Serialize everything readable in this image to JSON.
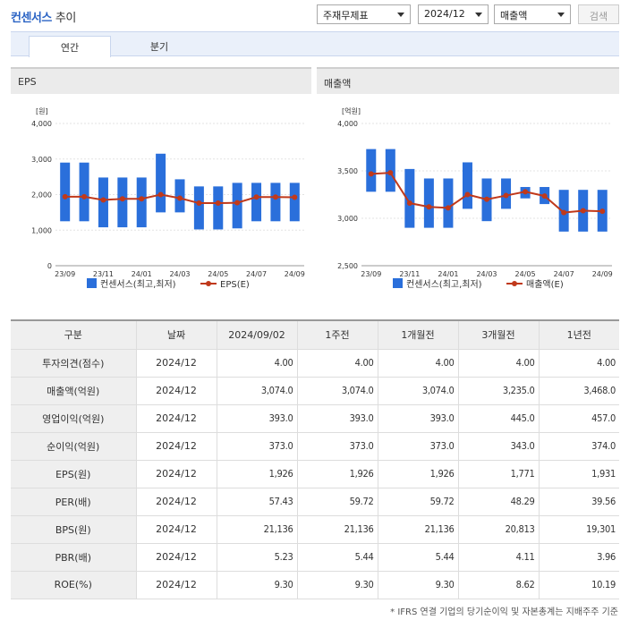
{
  "header": {
    "title_accent": "컨센서스",
    "title_rest": "추이",
    "select_type": "주재무제표",
    "select_period": "2024/12",
    "select_item": "매출액",
    "search_label": "검색"
  },
  "tabs": [
    {
      "label": "연간"
    },
    {
      "label": "분기"
    }
  ],
  "charts": {
    "eps": {
      "title": "EPS"
    },
    "revenue": {
      "title": "매출액"
    }
  },
  "chart_data": [
    {
      "type": "bar",
      "title": "EPS",
      "ylabel": "[원]",
      "ylim": [
        0,
        4000
      ],
      "yticks": [
        "4,000",
        "3,000",
        "2,000",
        "1,000",
        "0"
      ],
      "yticks_values": [
        4000,
        3000,
        2000,
        1000,
        0
      ],
      "x_tick_labels": [
        "23/09",
        "23/11",
        "24/01",
        "24/03",
        "24/05",
        "24/07",
        "24/09"
      ],
      "series": [
        {
          "name": "컨센서스(최고,최저)",
          "kind": "range-bar",
          "color": "#2a6fdb",
          "ranges": [
            [
              1250,
              2900
            ],
            [
              1250,
              2900
            ],
            [
              1080,
              2480
            ],
            [
              1080,
              2480
            ],
            [
              1080,
              2480
            ],
            [
              1500,
              3150
            ],
            [
              1500,
              2430
            ],
            [
              1020,
              2230
            ],
            [
              1020,
              2230
            ],
            [
              1050,
              2330
            ],
            [
              1250,
              2330
            ],
            [
              1250,
              2330
            ],
            [
              1250,
              2330
            ]
          ]
        },
        {
          "name": "EPS(E)",
          "kind": "line",
          "color": "#c0391b",
          "values": [
            1940,
            1940,
            1850,
            1880,
            1880,
            2000,
            1900,
            1760,
            1760,
            1770,
            1930,
            1930,
            1926
          ]
        }
      ]
    },
    {
      "type": "bar",
      "title": "매출액",
      "ylabel": "[억원]",
      "ylim": [
        2500,
        4000
      ],
      "yticks": [
        "4,000",
        "3,500",
        "3,000",
        "2,500"
      ],
      "yticks_values": [
        4000,
        3500,
        3000,
        2500
      ],
      "x_tick_labels": [
        "23/09",
        "23/11",
        "24/01",
        "24/03",
        "24/05",
        "24/07",
        "24/09"
      ],
      "series": [
        {
          "name": "컨센서스(최고,최저)",
          "kind": "range-bar",
          "color": "#2a6fdb",
          "ranges": [
            [
              3280,
              3730
            ],
            [
              3280,
              3730
            ],
            [
              2900,
              3520
            ],
            [
              2900,
              3420
            ],
            [
              2900,
              3420
            ],
            [
              3100,
              3590
            ],
            [
              2970,
              3420
            ],
            [
              3100,
              3420
            ],
            [
              3210,
              3330
            ],
            [
              3150,
              3330
            ],
            [
              2860,
              3300
            ],
            [
              2860,
              3300
            ],
            [
              2860,
              3300
            ]
          ]
        },
        {
          "name": "매출액(E)",
          "kind": "line",
          "color": "#c0391b",
          "values": [
            3468,
            3480,
            3160,
            3120,
            3110,
            3250,
            3200,
            3240,
            3280,
            3235,
            3060,
            3080,
            3074
          ]
        }
      ]
    }
  ],
  "table": {
    "headers": [
      "구분",
      "날짜",
      "2024/09/02",
      "1주전",
      "1개월전",
      "3개월전",
      "1년전"
    ],
    "rows": [
      [
        "투자의견(점수)",
        "2024/12",
        "4.00",
        "4.00",
        "4.00",
        "4.00",
        "4.00"
      ],
      [
        "매출액(억원)",
        "2024/12",
        "3,074.0",
        "3,074.0",
        "3,074.0",
        "3,235.0",
        "3,468.0"
      ],
      [
        "영업이익(억원)",
        "2024/12",
        "393.0",
        "393.0",
        "393.0",
        "445.0",
        "457.0"
      ],
      [
        "순이익(억원)",
        "2024/12",
        "373.0",
        "373.0",
        "373.0",
        "343.0",
        "374.0"
      ],
      [
        "EPS(원)",
        "2024/12",
        "1,926",
        "1,926",
        "1,926",
        "1,771",
        "1,931"
      ],
      [
        "PER(배)",
        "2024/12",
        "57.43",
        "59.72",
        "59.72",
        "48.29",
        "39.56"
      ],
      [
        "BPS(원)",
        "2024/12",
        "21,136",
        "21,136",
        "21,136",
        "20,813",
        "19,301"
      ],
      [
        "PBR(배)",
        "2024/12",
        "5.23",
        "5.44",
        "5.44",
        "4.11",
        "3.96"
      ],
      [
        "ROE(%)",
        "2024/12",
        "9.30",
        "9.30",
        "9.30",
        "8.62",
        "10.19"
      ]
    ]
  },
  "footnote": "* IFRS 연결 기업의 당기순이익 및 자본총계는 지배주주 기준"
}
